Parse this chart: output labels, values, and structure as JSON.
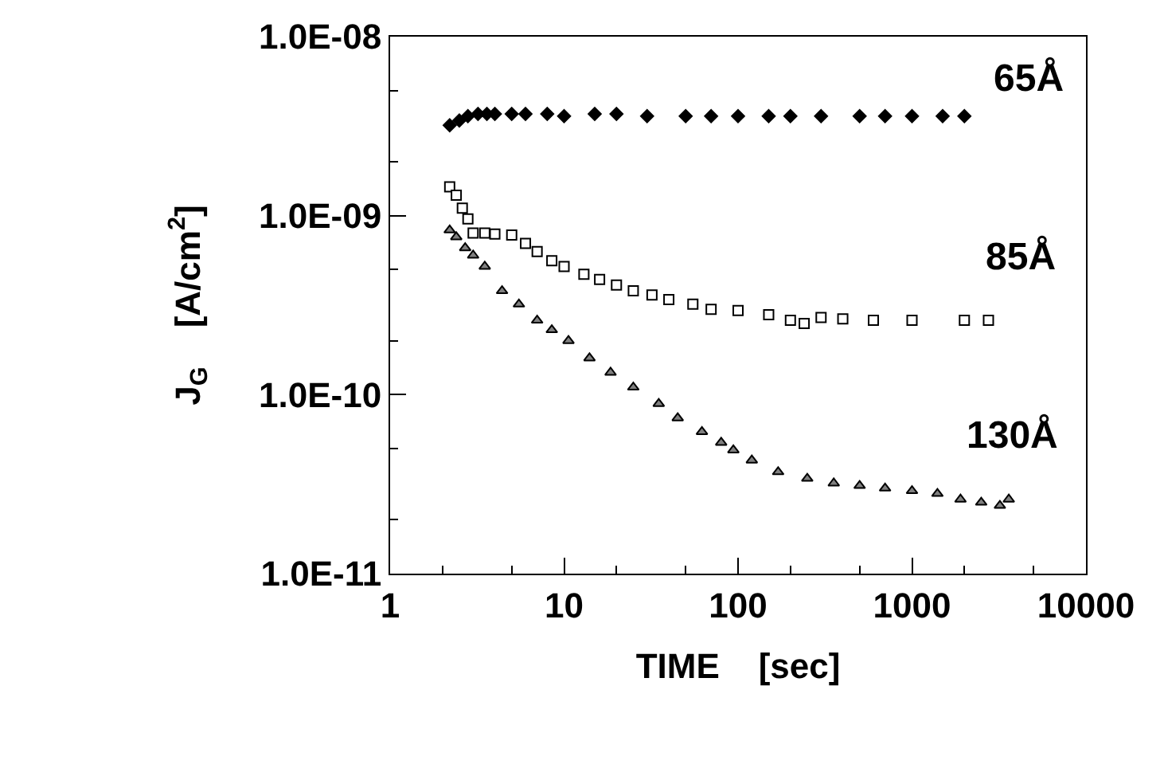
{
  "chart_data": {
    "type": "scatter",
    "xlabel": "TIME    [sec]",
    "ylabel": "J$_{G}$    [A/cm$^{2}$]",
    "log": "xy",
    "grid": false,
    "legend": false,
    "xlim": [
      1,
      10000
    ],
    "xticks": [
      1,
      10,
      100,
      1000,
      10000
    ],
    "ylim": [
      1e-11,
      1e-08
    ],
    "yticks": [
      {
        "value": 1e-11,
        "label": "1.0E-11"
      },
      {
        "value": 1e-10,
        "label": "1.0E-10"
      },
      {
        "value": 1e-09,
        "label": "1.0E-09"
      },
      {
        "value": 1e-08,
        "label": "1.0E-08"
      }
    ],
    "series": [
      {
        "name": "65Å",
        "color": "#000000",
        "marker": "diamond",
        "x": [
          2.2,
          2.5,
          2.8,
          3.2,
          3.6,
          4,
          5,
          6,
          8,
          10,
          15,
          20,
          30,
          50,
          70,
          100,
          150,
          200,
          300,
          500,
          700,
          1000,
          1500,
          2000
        ],
        "values": [
          3.2e-09,
          3.4e-09,
          3.6e-09,
          3.7e-09,
          3.7e-09,
          3.7e-09,
          3.7e-09,
          3.7e-09,
          3.7e-09,
          3.6e-09,
          3.7e-09,
          3.7e-09,
          3.6e-09,
          3.6e-09,
          3.6e-09,
          3.6e-09,
          3.6e-09,
          3.6e-09,
          3.6e-09,
          3.6e-09,
          3.6e-09,
          3.6e-09,
          3.6e-09,
          3.6e-09
        ]
      },
      {
        "name": "85Å",
        "color": "#000000",
        "marker": "square",
        "x": [
          2.2,
          2.4,
          2.6,
          2.8,
          3,
          3.5,
          4,
          5,
          6,
          7,
          8.5,
          10,
          13,
          16,
          20,
          25,
          32,
          40,
          55,
          70,
          100,
          150,
          200,
          240,
          300,
          400,
          600,
          1000,
          2000,
          2750
        ],
        "values": [
          1.45e-09,
          1.3e-09,
          1.1e-09,
          9.6e-10,
          8e-10,
          8e-10,
          7.9e-10,
          7.8e-10,
          7e-10,
          6.3e-10,
          5.6e-10,
          5.2e-10,
          4.7e-10,
          4.4e-10,
          4.1e-10,
          3.8e-10,
          3.6e-10,
          3.4e-10,
          3.2e-10,
          3e-10,
          2.95e-10,
          2.8e-10,
          2.6e-10,
          2.5e-10,
          2.7e-10,
          2.65e-10,
          2.6e-10,
          2.6e-10,
          2.6e-10,
          2.6e-10
        ]
      },
      {
        "name": "130Å",
        "color": "#808080",
        "marker": "triangle",
        "x": [
          2.2,
          2.4,
          2.7,
          3,
          3.5,
          4.4,
          5.5,
          7,
          8.5,
          10.6,
          14,
          18.5,
          25,
          35,
          45,
          62,
          80,
          94,
          120,
          170,
          250,
          355,
          500,
          700,
          1000,
          1400,
          1900,
          2500,
          3200,
          3600
        ],
        "values": [
          8.3e-10,
          7.6e-10,
          6.6e-10,
          6e-10,
          5.2e-10,
          3.8e-10,
          3.2e-10,
          2.6e-10,
          2.3e-10,
          2e-10,
          1.6e-10,
          1.33e-10,
          1.1e-10,
          8.9e-11,
          7.4e-11,
          6.2e-11,
          5.4e-11,
          4.9e-11,
          4.3e-11,
          3.7e-11,
          3.4e-11,
          3.2e-11,
          3.1e-11,
          3e-11,
          2.9e-11,
          2.8e-11,
          2.6e-11,
          2.5e-11,
          2.4e-11,
          2.6e-11
        ]
      }
    ]
  }
}
